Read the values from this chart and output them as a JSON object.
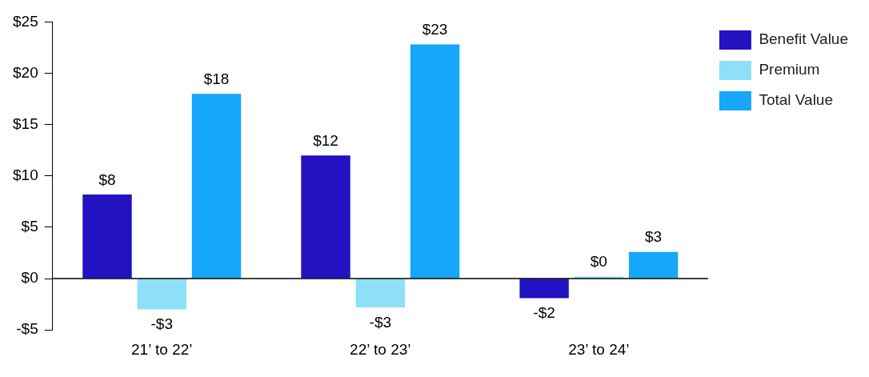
{
  "chart_data": {
    "type": "bar",
    "categories": [
      "21’ to 22’",
      "22’ to 23’",
      "23’ to 24’"
    ],
    "series": [
      {
        "name": "Benefit Value",
        "color": "#2212c2",
        "values": [
          8.2,
          12.0,
          -1.9
        ],
        "value_labels": [
          "$8",
          "$12",
          "-$2"
        ]
      },
      {
        "name": "Premium",
        "color": "#8ee0f8",
        "values": [
          -3.0,
          -2.8,
          0.2
        ],
        "value_labels": [
          "-$3",
          "-$3",
          "$0"
        ]
      },
      {
        "name": "Total Value",
        "color": "#16a6fa",
        "values": [
          18.0,
          22.8,
          2.6
        ],
        "value_labels": [
          "$18",
          "$23",
          "$3"
        ]
      }
    ],
    "ylim": [
      -5,
      25
    ],
    "yticks": [
      {
        "value": -5,
        "label": "-$5"
      },
      {
        "value": 0,
        "label": "$0"
      },
      {
        "value": 5,
        "label": "$5"
      },
      {
        "value": 10,
        "label": "$10"
      },
      {
        "value": 15,
        "label": "$15"
      },
      {
        "value": 20,
        "label": "$20"
      },
      {
        "value": 25,
        "label": "$25"
      }
    ],
    "ref_lines": [
      {
        "axis": "y",
        "value": 0,
        "color": "#000000"
      }
    ],
    "grid": false,
    "legend": "top right"
  }
}
